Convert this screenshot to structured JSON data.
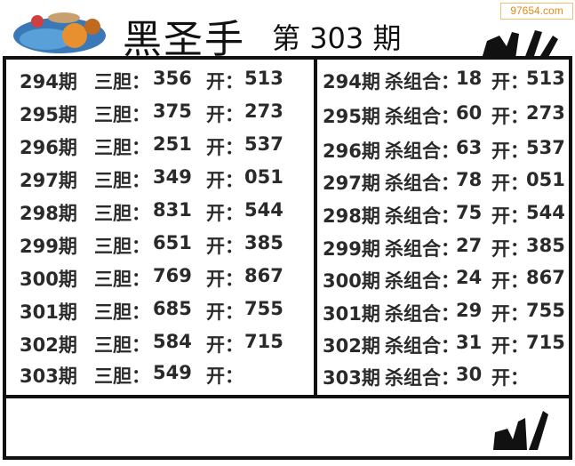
{
  "header": {
    "title": "黑圣手",
    "issue_prefix": "第",
    "issue": "303",
    "issue_suffix": "期",
    "watermark": "97654.com"
  },
  "left": {
    "label": "三胆：",
    "open_label": "开：",
    "rows": [
      {
        "period": "294期",
        "value": "356",
        "result": "513"
      },
      {
        "period": "295期",
        "value": "375",
        "result": "273"
      },
      {
        "period": "296期",
        "value": "251",
        "result": "537"
      },
      {
        "period": "297期",
        "value": "349",
        "result": "051"
      },
      {
        "period": "298期",
        "value": "831",
        "result": "544"
      },
      {
        "period": "299期",
        "value": "651",
        "result": "385"
      },
      {
        "period": "300期",
        "value": "769",
        "result": "867"
      },
      {
        "period": "301期",
        "value": "685",
        "result": "755"
      },
      {
        "period": "302期",
        "value": "584",
        "result": "715"
      },
      {
        "period": "303期",
        "value": "549",
        "result": ""
      }
    ]
  },
  "right": {
    "label": "杀组合：",
    "open_label": "开：",
    "rows": [
      {
        "period": "294期",
        "value": "18",
        "result": "513"
      },
      {
        "period": "295期",
        "value": "60",
        "result": "273"
      },
      {
        "period": "296期",
        "value": "63",
        "result": "537"
      },
      {
        "period": "297期",
        "value": "78",
        "result": "051"
      },
      {
        "period": "298期",
        "value": "75",
        "result": "544"
      },
      {
        "period": "299期",
        "value": "27",
        "result": "385"
      },
      {
        "period": "300期",
        "value": "24",
        "result": "867"
      },
      {
        "period": "301期",
        "value": "29",
        "result": "755"
      },
      {
        "period": "302期",
        "value": "31",
        "result": "715"
      },
      {
        "period": "303期",
        "value": "30",
        "result": ""
      }
    ]
  },
  "icons": {
    "logo": "cartoon-logo",
    "hand": "ok-hand-icon"
  }
}
